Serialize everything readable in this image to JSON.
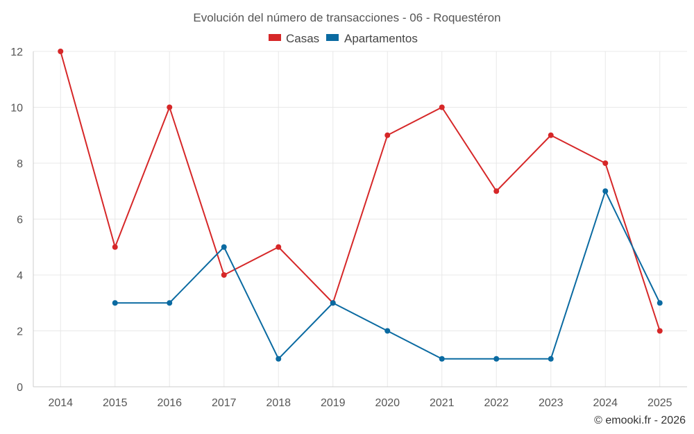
{
  "chart_data": {
    "type": "line",
    "title": "Evolución del número de transacciones - 06 - Roquestéron",
    "categories": [
      "2014",
      "2015",
      "2016",
      "2017",
      "2018",
      "2019",
      "2020",
      "2021",
      "2022",
      "2023",
      "2024",
      "2025"
    ],
    "series": [
      {
        "name": "Casas",
        "color": "#d62728",
        "values": [
          12,
          5,
          10,
          4,
          5,
          3,
          9,
          10,
          7,
          9,
          8,
          2
        ]
      },
      {
        "name": "Apartamentos",
        "color": "#0a6aa1",
        "values": [
          null,
          3,
          3,
          5,
          1,
          3,
          2,
          1,
          1,
          1,
          7,
          3
        ]
      }
    ],
    "ylim": [
      0,
      12
    ],
    "yticks": [
      0,
      2,
      4,
      6,
      8,
      10,
      12
    ],
    "grid": true,
    "legend": "top-center",
    "xlabel": "",
    "ylabel": ""
  },
  "credit": "© emooki.fr - 2026"
}
